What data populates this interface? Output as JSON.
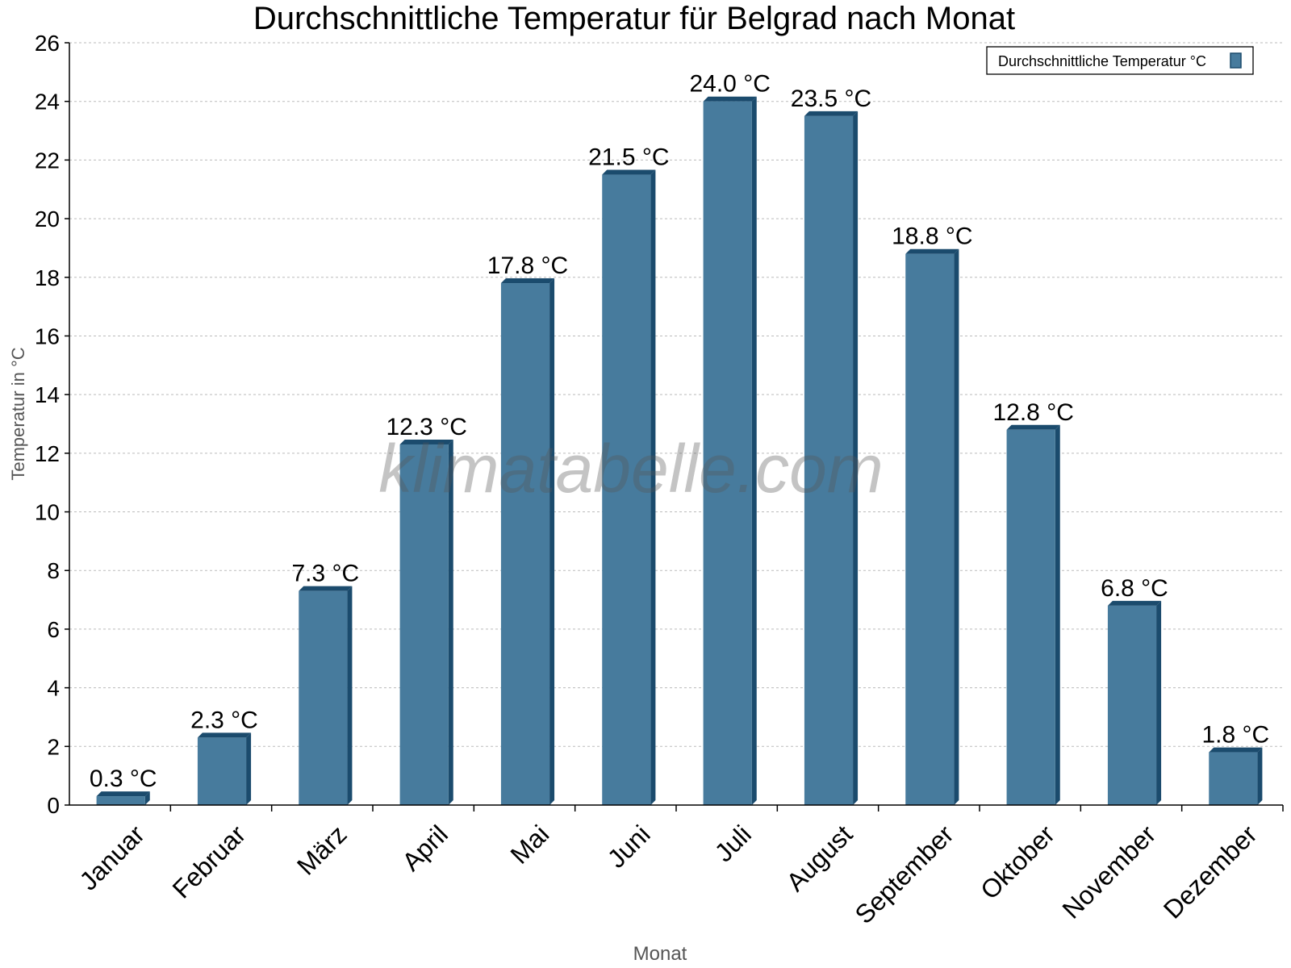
{
  "chart_data": {
    "type": "bar",
    "title": "Durchschnittliche Temperatur für Belgrad nach Monat",
    "xlabel": "Monat",
    "ylabel": "Temperatur in °C",
    "categories": [
      "Januar",
      "Februar",
      "März",
      "April",
      "Mai",
      "Juni",
      "Juli",
      "August",
      "September",
      "Oktober",
      "November",
      "Dezember"
    ],
    "series": [
      {
        "name": "Durchschnittliche Temperatur °C",
        "values": [
          0.3,
          2.3,
          7.3,
          12.3,
          17.8,
          21.5,
          24.0,
          23.5,
          18.8,
          12.8,
          6.8,
          1.8
        ],
        "color": "#477b9d",
        "side_color": "#1b4b6d"
      }
    ],
    "data_labels": [
      "0.3 °C",
      "2.3 °C",
      "7.3 °C",
      "12.3 °C",
      "17.8 °C",
      "21.5 °C",
      "24.0 °C",
      "23.5 °C",
      "18.8 °C",
      "12.8 °C",
      "6.8 °C",
      "1.8 °C"
    ],
    "ylim": [
      0,
      26
    ],
    "yticks": [
      0,
      2,
      4,
      6,
      8,
      10,
      12,
      14,
      16,
      18,
      20,
      22,
      24,
      26
    ],
    "grid": true,
    "legend": "top-right",
    "watermark": "klimatabelle.com"
  }
}
